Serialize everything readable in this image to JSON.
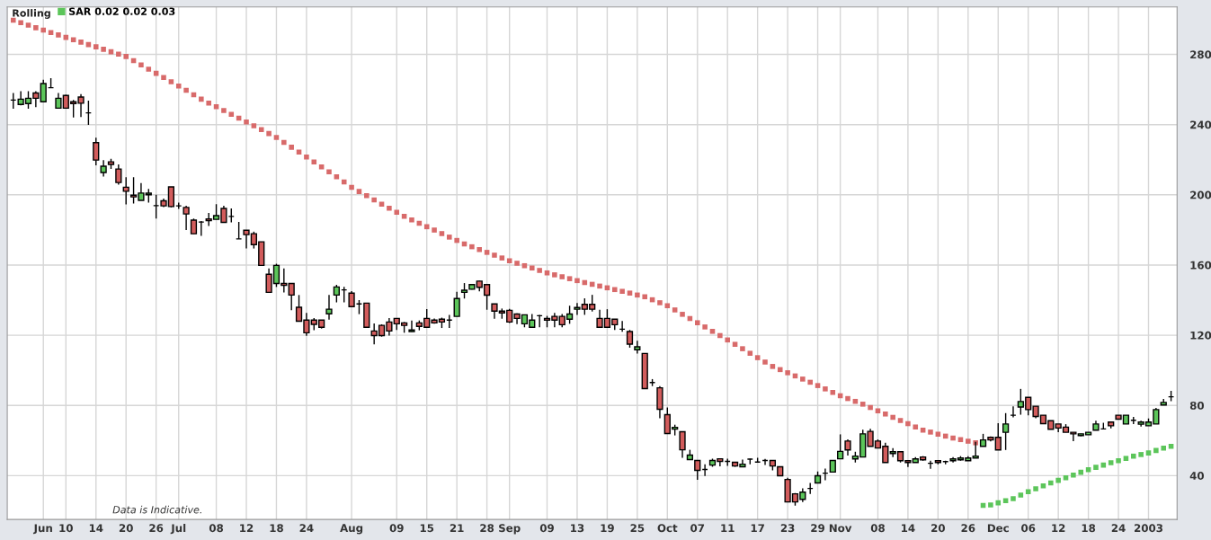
{
  "chart_data": {
    "type": "candlestick",
    "title": "Rolling",
    "categories": [
      null,
      null,
      null,
      null,
      "Jun",
      null,
      null,
      "10",
      null,
      null,
      null,
      "14",
      null,
      null,
      null,
      "20",
      null,
      null,
      null,
      "26",
      null,
      null,
      "Jul",
      null,
      null,
      null,
      null,
      "08",
      null,
      null,
      null,
      "12",
      null,
      null,
      null,
      "18",
      null,
      null,
      null,
      "24",
      null,
      null,
      null,
      null,
      null,
      "Aug",
      null,
      null,
      null,
      null,
      null,
      "09",
      null,
      null,
      null,
      "15",
      null,
      null,
      null,
      "21",
      null,
      null,
      null,
      "28",
      null,
      null,
      "Sep",
      null,
      null,
      null,
      null,
      "09",
      null,
      null,
      null,
      "13",
      null,
      null,
      null,
      "19",
      null,
      null,
      null,
      "25",
      null,
      null,
      null,
      "Oct",
      null,
      null,
      null,
      "07",
      null,
      null,
      null,
      "11",
      null,
      null,
      null,
      "17",
      null,
      null,
      null,
      "23",
      null,
      null,
      null,
      "29",
      null,
      null,
      "Nov",
      null,
      null,
      null,
      null,
      "08",
      null,
      null,
      null,
      "14",
      null,
      null,
      null,
      "20",
      null,
      null,
      null,
      "26",
      null,
      null,
      null,
      "Dec",
      null,
      null,
      null,
      "06",
      null,
      null,
      null,
      "12",
      null,
      null,
      null,
      "18",
      null,
      null,
      null,
      "24",
      null,
      null,
      null,
      "2003",
      null,
      null,
      null
    ],
    "series": [
      {
        "ohlc": [
          [
            254,
            258,
            249,
            254
          ],
          [
            251.5,
            259,
            251,
            254.5
          ],
          [
            252,
            259,
            249,
            255
          ],
          [
            258,
            259,
            250,
            255
          ],
          [
            253,
            265.5,
            252.7,
            263.4
          ],
          [
            261,
            266.5,
            261,
            261
          ],
          [
            249.4,
            258,
            249.4,
            255
          ],
          [
            256.6,
            257,
            249.4,
            249.4
          ],
          [
            253,
            254,
            244,
            252
          ],
          [
            255.7,
            257.4,
            244.3,
            252.2
          ],
          [
            246.7,
            253.7,
            239.8,
            246.7
          ],
          [
            229.7,
            232.6,
            216.8,
            219.8
          ],
          [
            212.7,
            219.8,
            210.4,
            216.3
          ],
          [
            218.8,
            220.5,
            214.7,
            217.3
          ],
          [
            214.7,
            217.3,
            205.8,
            207
          ],
          [
            204.3,
            210,
            194.5,
            202
          ],
          [
            199.8,
            210,
            195,
            198.8
          ],
          [
            196.8,
            206.7,
            196.8,
            201
          ],
          [
            200,
            203.3,
            195.5,
            200.9
          ],
          [
            193.8,
            200,
            186.5,
            193.8
          ],
          [
            196.6,
            197.8,
            193,
            193.7
          ],
          [
            204.5,
            204.5,
            192.8,
            193.3
          ],
          [
            193.7,
            195.5,
            192,
            193.7
          ],
          [
            192.8,
            193.7,
            179.9,
            189.1
          ],
          [
            185.6,
            186.4,
            177.8,
            177.8
          ],
          [
            184.5,
            185,
            176.6,
            184.5
          ],
          [
            186.3,
            189.6,
            182.2,
            185.3
          ],
          [
            186,
            194.7,
            186,
            188.1
          ],
          [
            192.2,
            193.8,
            184.3,
            184.3
          ],
          [
            187.7,
            192.2,
            184.3,
            187.7
          ],
          [
            174.9,
            184.6,
            174.9,
            174.9
          ],
          [
            179.8,
            179.8,
            169.4,
            177.3
          ],
          [
            177.8,
            179,
            169.4,
            171.6
          ],
          [
            173.2,
            173.2,
            159.8,
            159.8
          ],
          [
            154.7,
            158,
            144.4,
            144.4
          ],
          [
            149.5,
            160.7,
            147.5,
            159.8
          ],
          [
            149.5,
            158,
            144.3,
            148.4
          ],
          [
            149.5,
            149.5,
            134.2,
            142.9
          ],
          [
            135.9,
            142.9,
            128,
            128
          ],
          [
            128.6,
            132.7,
            119.7,
            121.4
          ],
          [
            128.6,
            129.7,
            122.8,
            126.2
          ],
          [
            128.6,
            128.6,
            123.8,
            124.5
          ],
          [
            132.2,
            142.9,
            128.9,
            134.8
          ],
          [
            142.9,
            148.7,
            138.7,
            147.5
          ],
          [
            145.8,
            147.5,
            138.7,
            145.8
          ],
          [
            144,
            145.1,
            136.3,
            136.3
          ],
          [
            137.8,
            140,
            132,
            137.8
          ],
          [
            138.3,
            138.3,
            124.5,
            124.5
          ],
          [
            122.4,
            126.7,
            114.8,
            119.8
          ],
          [
            125.6,
            126.2,
            119.2,
            119.8
          ],
          [
            127.5,
            129.7,
            119.8,
            122.4
          ],
          [
            129.6,
            129.6,
            123,
            126.5
          ],
          [
            127,
            127.5,
            121.4,
            125.6
          ],
          [
            122.1,
            128.4,
            122,
            123
          ],
          [
            127,
            128.4,
            122.8,
            125
          ],
          [
            129.6,
            134.9,
            124.5,
            124.5
          ],
          [
            128.6,
            129.5,
            126.5,
            127
          ],
          [
            129.1,
            130,
            124.1,
            127.5
          ],
          [
            128.6,
            131.5,
            124.1,
            128.6
          ],
          [
            130.7,
            144.8,
            130.7,
            140.9
          ],
          [
            144.4,
            149.7,
            140.9,
            145.6
          ],
          [
            146.2,
            148.8,
            146,
            148.8
          ],
          [
            150.8,
            151,
            145,
            147.3
          ],
          [
            148.8,
            148.8,
            134.5,
            142.8
          ],
          [
            137.8,
            137.8,
            129.4,
            133.7
          ],
          [
            133.7,
            135.2,
            129.4,
            132.7
          ],
          [
            134.2,
            135,
            127,
            127.5
          ],
          [
            132.1,
            132.5,
            126.3,
            129.6
          ],
          [
            126.5,
            131.6,
            124.5,
            131.6
          ],
          [
            124.5,
            132.1,
            124.5,
            128.6
          ],
          [
            131.1,
            131.5,
            124.5,
            131.1
          ],
          [
            129.6,
            131,
            124.5,
            128.6
          ],
          [
            130.7,
            132.7,
            124.5,
            128.6
          ],
          [
            130.7,
            132.1,
            124.5,
            126
          ],
          [
            129.1,
            136.8,
            126.5,
            132.1
          ],
          [
            134.8,
            138.4,
            131.6,
            135.8
          ],
          [
            137.6,
            141,
            131.6,
            134.8
          ],
          [
            137.6,
            143,
            133.5,
            134.8
          ],
          [
            129.6,
            134.5,
            124.5,
            124.5
          ],
          [
            129.6,
            134.8,
            124.5,
            124.5
          ],
          [
            129.1,
            129.1,
            123,
            126
          ],
          [
            123.4,
            128.1,
            121.9,
            123.4
          ],
          [
            122.1,
            123,
            112.9,
            114.9
          ],
          [
            111.7,
            116.8,
            109.6,
            113.4
          ],
          [
            109.6,
            109.6,
            89.6,
            89.6
          ],
          [
            93,
            95,
            91,
            93
          ],
          [
            90,
            91,
            72.7,
            77.8
          ],
          [
            74.7,
            78.8,
            64,
            64
          ],
          [
            66.5,
            69,
            62.9,
            67.5
          ],
          [
            65,
            65,
            50.1,
            54.7
          ],
          [
            49.1,
            54.7,
            49,
            51.7
          ],
          [
            48.6,
            48.6,
            37.6,
            43
          ],
          [
            43.5,
            46.5,
            39.8,
            43.5
          ],
          [
            46,
            49.6,
            45,
            48.6
          ],
          [
            49.6,
            49.6,
            45.3,
            48.1
          ],
          [
            48.1,
            49.6,
            45.5,
            48.1
          ],
          [
            47.6,
            47.6,
            45,
            45.5
          ],
          [
            45,
            49.1,
            45,
            46.5
          ],
          [
            49.4,
            49.6,
            46.5,
            49.4
          ],
          [
            47.7,
            50.1,
            47.7,
            47.7
          ],
          [
            48.6,
            49.5,
            46,
            48.6
          ],
          [
            48.6,
            48.6,
            43,
            45.5
          ],
          [
            45,
            45,
            39.9,
            39.9
          ],
          [
            37.8,
            38.8,
            25,
            25
          ],
          [
            29.6,
            30,
            22.9,
            25
          ],
          [
            26.5,
            32.7,
            25,
            30.6
          ],
          [
            32.7,
            35.8,
            29.6,
            32.7
          ],
          [
            35.8,
            42.4,
            35.8,
            39.9
          ],
          [
            41.4,
            44,
            37.3,
            41.4
          ],
          [
            42,
            48.6,
            42,
            48.6
          ],
          [
            49.6,
            63.5,
            49.6,
            53.8
          ],
          [
            59.7,
            60.6,
            51.4,
            54.6
          ],
          [
            49.5,
            53.6,
            47.5,
            51.1
          ],
          [
            50.6,
            66.2,
            50.6,
            63.8
          ],
          [
            65.2,
            66.7,
            56.7,
            56.7
          ],
          [
            59.7,
            60.6,
            55.7,
            55.7
          ],
          [
            56.7,
            58.7,
            47.5,
            47.5
          ],
          [
            52.6,
            55.7,
            50.6,
            53.6
          ],
          [
            53.6,
            53.6,
            47.5,
            48.5
          ],
          [
            48.5,
            48.6,
            44.9,
            47.5
          ],
          [
            47.5,
            50.6,
            47.5,
            49.5
          ],
          [
            50.6,
            51.1,
            48.5,
            49
          ],
          [
            47,
            48.5,
            43.9,
            47
          ],
          [
            48.5,
            48.5,
            46.5,
            47.5
          ],
          [
            48,
            48.5,
            46.5,
            48
          ],
          [
            48.5,
            50.6,
            47.5,
            49.5
          ],
          [
            49,
            51.1,
            48.5,
            50
          ],
          [
            48.5,
            51.1,
            48.5,
            50
          ],
          [
            50,
            59.2,
            50,
            51.1
          ],
          [
            56.7,
            63.8,
            56.7,
            60.3
          ],
          [
            61.8,
            62.3,
            59.5,
            60.3
          ],
          [
            61.8,
            69.8,
            54.6,
            54.6
          ],
          [
            64.7,
            75.6,
            54.6,
            69.4
          ],
          [
            74.4,
            79.5,
            73.2,
            74.4
          ],
          [
            79.1,
            89.4,
            74.7,
            82.2
          ],
          [
            84.6,
            84.6,
            74.4,
            77.6
          ],
          [
            79.5,
            79.5,
            72.7,
            73.7
          ],
          [
            74.4,
            74.4,
            69.6,
            69.6
          ],
          [
            71.3,
            71.3,
            66.4,
            66.4
          ],
          [
            69.4,
            69.4,
            64.7,
            67.1
          ],
          [
            67.6,
            69.3,
            64.7,
            64.7
          ],
          [
            64.7,
            64.7,
            59.6,
            63.8
          ],
          [
            62.8,
            63.8,
            62.5,
            63.8
          ],
          [
            63.3,
            64.7,
            63.3,
            64.7
          ],
          [
            65.9,
            71.3,
            65.9,
            69.4
          ],
          [
            66.6,
            70.1,
            66.6,
            66.6
          ],
          [
            70.5,
            70.5,
            66.9,
            68.4
          ],
          [
            74.4,
            74.4,
            72.2,
            72.2
          ],
          [
            69.4,
            74.4,
            69.4,
            74.4
          ],
          [
            71.5,
            73.5,
            69.3,
            71.5
          ],
          [
            69.3,
            71.3,
            68,
            70.5
          ],
          [
            68.4,
            72.5,
            68.4,
            70.5
          ],
          [
            69.4,
            78.6,
            69.4,
            77.6
          ],
          [
            80.2,
            83.7,
            80.2,
            81.7
          ],
          [
            84.9,
            88.3,
            82.4,
            84.9
          ]
        ],
        "colors": [
          "#000000",
          "#5cc55a",
          "#5cc55a",
          "#d25c5c",
          "#5cc55a",
          "#000000",
          "#5cc55a",
          "#d25c5c",
          "#d25c5c",
          "#d25c5c",
          "#000000",
          "#d25c5c",
          "#5cc55a",
          "#d25c5c",
          "#d25c5c",
          "#d25c5c",
          "#d25c5c",
          "#5cc55a",
          "#5cc55a",
          "#000000",
          "#d25c5c",
          "#d25c5c",
          "#000000",
          "#d25c5c",
          "#d25c5c",
          "#000000",
          "#d25c5c",
          "#5cc55a",
          "#d25c5c",
          "#000000",
          "#000000",
          "#d25c5c",
          "#d25c5c",
          "#d25c5c",
          "#d25c5c",
          "#5cc55a",
          "#d25c5c",
          "#d25c5c",
          "#d25c5c",
          "#d25c5c",
          "#d25c5c",
          "#d25c5c",
          "#5cc55a",
          "#5cc55a",
          "#000000",
          "#d25c5c",
          "#000000",
          "#d25c5c",
          "#d25c5c",
          "#d25c5c",
          "#d25c5c",
          "#d25c5c",
          "#d25c5c",
          "#5cc55a",
          "#d25c5c",
          "#d25c5c",
          "#d25c5c",
          "#d25c5c",
          "#000000",
          "#5cc55a",
          "#5cc55a",
          "#5cc55a",
          "#d25c5c",
          "#d25c5c",
          "#d25c5c",
          "#d25c5c",
          "#d25c5c",
          "#d25c5c",
          "#5cc55a",
          "#5cc55a",
          "#000000",
          "#d25c5c",
          "#d25c5c",
          "#d25c5c",
          "#5cc55a",
          "#5cc55a",
          "#d25c5c",
          "#d25c5c",
          "#d25c5c",
          "#d25c5c",
          "#d25c5c",
          "#000000",
          "#d25c5c",
          "#5cc55a",
          "#d25c5c",
          "#000000",
          "#d25c5c",
          "#d25c5c",
          "#5cc55a",
          "#d25c5c",
          "#5cc55a",
          "#d25c5c",
          "#000000",
          "#5cc55a",
          "#d25c5c",
          "#000000",
          "#d25c5c",
          "#5cc55a",
          "#000000",
          "#000000",
          "#000000",
          "#d25c5c",
          "#d25c5c",
          "#d25c5c",
          "#d25c5c",
          "#5cc55a",
          "#000000",
          "#5cc55a",
          "#000000",
          "#5cc55a",
          "#5cc55a",
          "#d25c5c",
          "#5cc55a",
          "#5cc55a",
          "#d25c5c",
          "#d25c5c",
          "#d25c5c",
          "#5cc55a",
          "#d25c5c",
          "#d25c5c",
          "#5cc55a",
          "#d25c5c",
          "#000000",
          "#d25c5c",
          "#000000",
          "#5cc55a",
          "#5cc55a",
          "#5cc55a",
          "#5cc55a",
          "#5cc55a",
          "#d25c5c",
          "#d25c5c",
          "#5cc55a",
          "#000000",
          "#5cc55a",
          "#d25c5c",
          "#d25c5c",
          "#d25c5c",
          "#d25c5c",
          "#d25c5c",
          "#d25c5c",
          "#d25c5c",
          "#5cc55a",
          "#5cc55a",
          "#5cc55a",
          "#000000",
          "#d25c5c",
          "#d25c5c",
          "#5cc55a",
          "#000000",
          "#5cc55a",
          "#5cc55a",
          "#5cc55a",
          "#5cc55a",
          "#000000"
        ]
      },
      {
        "type": "scatter",
        "color": "#d86a6a",
        "values": [
          299.5,
          298.1,
          296.7,
          295.2,
          293.8,
          292.4,
          291.1,
          289.7,
          288.3,
          287.0,
          285.6,
          284.3,
          282.9,
          281.5,
          280.2,
          278.8,
          276.4,
          274.0,
          271.6,
          269.2,
          266.8,
          264.4,
          262.0,
          259.5,
          257.0,
          254.5,
          252.3,
          250.2,
          248.0,
          245.9,
          243.7,
          241.5,
          239.3,
          237.1,
          234.9,
          232.7,
          229.9,
          227.1,
          224.3,
          221.5,
          218.7,
          215.9,
          213.1,
          210.3,
          207.3,
          204.3,
          201.9,
          199.5,
          197.1,
          194.7,
          192.4,
          190.0,
          187.7,
          185.7,
          183.8,
          181.8,
          179.9,
          177.9,
          175.9,
          174.0,
          172.0,
          170.4,
          168.8,
          167.2,
          165.6,
          164.0,
          162.4,
          161.0,
          159.6,
          158.3,
          156.9,
          155.5,
          154.4,
          153.3,
          152.2,
          151.1,
          150.0,
          149.0,
          148.0,
          147.0,
          146.0,
          145.0,
          144.0,
          142.9,
          141.9,
          140.2,
          138.5,
          136.8,
          134.4,
          131.9,
          129.5,
          127.1,
          124.7,
          122.2,
          119.8,
          117.3,
          114.8,
          112.3,
          109.7,
          107.2,
          104.7,
          102.2,
          100.4,
          98.6,
          96.8,
          95.0,
          93.2,
          91.3,
          89.4,
          87.4,
          85.5,
          83.9,
          82.3,
          80.7,
          78.8,
          76.9,
          75.1,
          73.2,
          71.4,
          69.6,
          67.7,
          65.9,
          64.8,
          63.6,
          62.5,
          61.4,
          60.5,
          59.6,
          58.7,
          null,
          null,
          null,
          null,
          null,
          null,
          null,
          null,
          null,
          null,
          null,
          null,
          null,
          null,
          null,
          null,
          null,
          null,
          null,
          null,
          null,
          null,
          null,
          null,
          null,
          null
        ]
      },
      {
        "type": "scatter",
        "name": "SAR 0.02 0.02 0.03",
        "color": "#5cc55a",
        "values": [
          null,
          null,
          null,
          null,
          null,
          null,
          null,
          null,
          null,
          null,
          null,
          null,
          null,
          null,
          null,
          null,
          null,
          null,
          null,
          null,
          null,
          null,
          null,
          null,
          null,
          null,
          null,
          null,
          null,
          null,
          null,
          null,
          null,
          null,
          null,
          null,
          null,
          null,
          null,
          null,
          null,
          null,
          null,
          null,
          null,
          null,
          null,
          null,
          null,
          null,
          null,
          null,
          null,
          null,
          null,
          null,
          null,
          null,
          null,
          null,
          null,
          null,
          null,
          null,
          null,
          null,
          null,
          null,
          null,
          null,
          null,
          null,
          null,
          null,
          null,
          null,
          null,
          null,
          null,
          null,
          null,
          null,
          null,
          null,
          null,
          null,
          null,
          null,
          null,
          null,
          null,
          null,
          null,
          null,
          null,
          null,
          null,
          null,
          null,
          null,
          null,
          null,
          null,
          null,
          null,
          null,
          null,
          null,
          null,
          null,
          null,
          null,
          null,
          null,
          null,
          null,
          null,
          null,
          null,
          null,
          null,
          null,
          null,
          null,
          null,
          null,
          null,
          null,
          null,
          23.0,
          23.3,
          24.5,
          25.7,
          26.9,
          28.9,
          30.8,
          32.5,
          34.2,
          35.8,
          37.3,
          38.8,
          40.3,
          41.9,
          43.4,
          44.7,
          46.0,
          47.3,
          48.5,
          49.8,
          51.1,
          52.0,
          52.9,
          54.3,
          55.7,
          56.7
        ]
      }
    ],
    "marker": "square",
    "ylim": [
      15,
      307
    ],
    "yticks": [
      40,
      80,
      120,
      160,
      200,
      240,
      280
    ],
    "grid": true,
    "legend": "top left",
    "annotations": [
      "Data is Indicative."
    ]
  }
}
